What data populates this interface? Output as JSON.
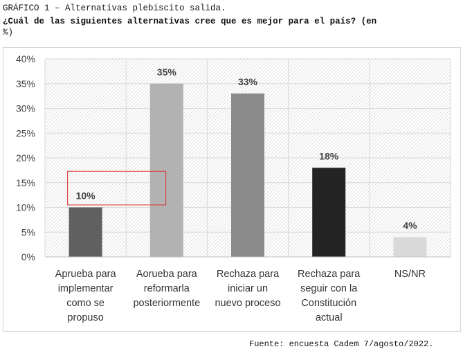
{
  "header": {
    "line1": "GRÁFICO 1 – Alternativas plebiscito salida.",
    "line2": "¿Cuál de las siguientes alternativas cree que es mejor para el país? (en",
    "line3": "%)"
  },
  "footer": {
    "source": "Fuente: encuesta Cadem 7/agosto/2022."
  },
  "colors": {
    "bar_colors": [
      "#606060",
      "#b2b2b2",
      "#8b8b8b",
      "#242424",
      "#d9d9d9"
    ],
    "highlight_box": "#e03030",
    "grid": "#d9d9d9"
  },
  "chart_data": {
    "type": "bar",
    "categories": [
      [
        "Aprueba para",
        "implementar",
        "como se",
        "propuso"
      ],
      [
        "Aorueba para",
        "reformarla",
        "posteriormente"
      ],
      [
        "Rechaza para",
        "iniciar un",
        "nuevo proceso"
      ],
      [
        "Rechaza para",
        "seguir con la",
        "Constitución",
        "actual"
      ],
      [
        "NS/NR"
      ]
    ],
    "values": [
      10,
      35,
      33,
      18,
      4
    ],
    "data_labels": [
      "10%",
      "35%",
      "33%",
      "18%",
      "4%"
    ],
    "ylim": [
      0,
      40
    ],
    "yticks": [
      0,
      5,
      10,
      15,
      20,
      25,
      30,
      35,
      40
    ],
    "ytick_labels": [
      "0%",
      "5%",
      "10%",
      "15%",
      "20%",
      "25%",
      "30%",
      "35%",
      "40%"
    ],
    "grid": true,
    "legend": "none",
    "annotation": {
      "type": "highlight-box",
      "around": "10%"
    }
  }
}
